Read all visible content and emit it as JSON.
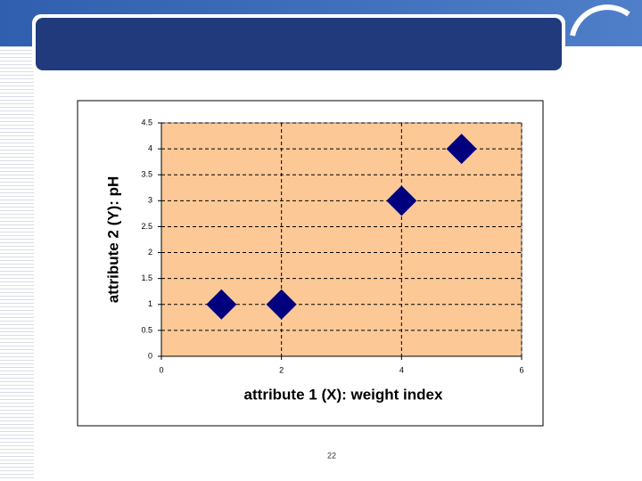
{
  "chart_data": {
    "type": "scatter",
    "x": [
      1,
      2,
      4,
      5
    ],
    "values": [
      1,
      1,
      3,
      4
    ],
    "color": "#00007f",
    "xlabel": "attribute 1 (X): weight index",
    "ylabel": "attribute 2 (Y): pH",
    "xlim": [
      0,
      6
    ],
    "xticks": [
      0,
      2,
      4,
      6
    ],
    "ylim": [
      0,
      4.5
    ],
    "yticks": [
      0,
      0.5,
      1,
      1.5,
      2,
      2.5,
      3,
      3.5,
      4,
      4.5
    ],
    "grid": true,
    "plot_background": "#fcc896"
  },
  "slide_number": "22"
}
